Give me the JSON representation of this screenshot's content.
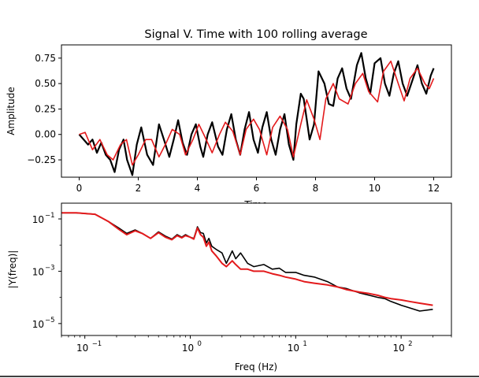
{
  "chart_data": [
    {
      "type": "line",
      "title": "Signal V. Time with 100 rolling average",
      "xlabel": "Time",
      "ylabel": "Amplitude",
      "xlim": [
        -0.6,
        12.6
      ],
      "ylim": [
        -0.42,
        0.88
      ],
      "xticks": [
        0,
        2,
        4,
        6,
        8,
        10,
        12
      ],
      "yticks": [
        -0.25,
        0.0,
        0.25,
        0.5,
        0.75
      ],
      "ytick_labels": [
        "−0.25",
        "0.00",
        "0.25",
        "0.50",
        "0.75"
      ],
      "colors": {
        "raw": "#000000",
        "rolling": "#e31a1c"
      },
      "series": [
        {
          "x": [
            0,
            0.3,
            0.45,
            0.6,
            0.75,
            0.9,
            1.05,
            1.2,
            1.35,
            1.5,
            1.62,
            1.8,
            1.95,
            2.1,
            2.3,
            2.5,
            2.7,
            2.9,
            3.05,
            3.2,
            3.35,
            3.5,
            3.65,
            3.8,
            3.95,
            4.1,
            4.2,
            4.35,
            4.5,
            4.7,
            4.85,
            5.0,
            5.15,
            5.3,
            5.45,
            5.6,
            5.75,
            5.9,
            6.05,
            6.2,
            6.35,
            6.5,
            6.65,
            6.8,
            6.95,
            7.1,
            7.25,
            7.35,
            7.5,
            7.6,
            7.7,
            7.8,
            7.95,
            8.1,
            8.3,
            8.45,
            8.6,
            8.75,
            8.9,
            9.05,
            9.2,
            9.4,
            9.55,
            9.7,
            9.85,
            10.0,
            10.2,
            10.35,
            10.5,
            10.65,
            10.8,
            10.95,
            11.1,
            11.3,
            11.45,
            11.6,
            11.75,
            11.9,
            12.0
          ],
          "y": [
            0.0,
            -0.1,
            -0.05,
            -0.18,
            -0.08,
            -0.2,
            -0.25,
            -0.37,
            -0.15,
            -0.05,
            -0.25,
            -0.4,
            -0.1,
            0.07,
            -0.2,
            -0.3,
            0.1,
            -0.08,
            -0.22,
            -0.05,
            0.14,
            -0.08,
            -0.2,
            0.0,
            0.1,
            -0.12,
            -0.22,
            0.0,
            0.12,
            -0.12,
            -0.2,
            0.05,
            0.2,
            -0.05,
            -0.2,
            0.05,
            0.22,
            -0.05,
            -0.18,
            0.07,
            0.22,
            -0.05,
            -0.2,
            0.05,
            0.2,
            -0.1,
            -0.25,
            0.1,
            0.4,
            0.35,
            0.15,
            -0.05,
            0.1,
            0.62,
            0.5,
            0.3,
            0.28,
            0.55,
            0.65,
            0.45,
            0.35,
            0.68,
            0.8,
            0.55,
            0.4,
            0.7,
            0.75,
            0.5,
            0.38,
            0.6,
            0.72,
            0.5,
            0.38,
            0.55,
            0.68,
            0.5,
            0.4,
            0.58,
            0.65
          ],
          "name": ""
        },
        {
          "x": [
            0,
            0.2,
            0.45,
            0.7,
            0.95,
            1.15,
            1.4,
            1.6,
            1.8,
            2.0,
            2.25,
            2.45,
            2.7,
            2.95,
            3.15,
            3.4,
            3.6,
            3.85,
            4.05,
            4.25,
            4.5,
            4.75,
            4.95,
            5.2,
            5.45,
            5.65,
            5.9,
            6.1,
            6.35,
            6.55,
            6.8,
            7.05,
            7.25,
            7.5,
            7.7,
            7.95,
            8.15,
            8.35,
            8.6,
            8.8,
            9.1,
            9.35,
            9.6,
            9.8,
            10.1,
            10.3,
            10.55,
            10.8,
            11.0,
            11.2,
            11.45,
            11.7,
            11.85,
            12.0
          ],
          "y": [
            0.0,
            0.02,
            -0.15,
            -0.05,
            -0.2,
            -0.25,
            -0.1,
            -0.05,
            -0.3,
            -0.2,
            -0.05,
            -0.05,
            -0.22,
            -0.08,
            0.05,
            0.0,
            -0.2,
            -0.05,
            0.1,
            -0.02,
            -0.18,
            0.0,
            0.12,
            0.03,
            -0.2,
            0.05,
            0.15,
            0.05,
            -0.2,
            0.07,
            0.18,
            0.05,
            -0.22,
            0.1,
            0.34,
            0.15,
            -0.05,
            0.35,
            0.5,
            0.35,
            0.3,
            0.5,
            0.6,
            0.42,
            0.32,
            0.62,
            0.72,
            0.5,
            0.33,
            0.55,
            0.65,
            0.5,
            0.45,
            0.55
          ],
          "name": ""
        }
      ]
    },
    {
      "type": "line",
      "title": "",
      "xlabel": "Freq (Hz)",
      "ylabel": "|Y(freq)|",
      "xscale": "log",
      "yscale": "log",
      "xlim": [
        0.06,
        300
      ],
      "ylim": [
        3.5e-06,
        0.4
      ],
      "xticks": [
        0.1,
        1,
        10,
        100
      ],
      "xtick_labels": [
        "10",
        "10",
        "10",
        "10"
      ],
      "xtick_exponents": [
        "−1",
        "0",
        "1",
        "2"
      ],
      "yticks": [
        1e-05,
        0.001,
        0.1
      ],
      "ytick_labels": [
        "10",
        "10",
        "10"
      ],
      "ytick_exponents": [
        "−5",
        "−3",
        "−1"
      ],
      "series": [
        {
          "x": [
            0.06,
            0.083,
            0.125,
            0.167,
            0.21,
            0.25,
            0.3,
            0.35,
            0.42,
            0.5,
            0.58,
            0.67,
            0.75,
            0.83,
            0.9,
            1.0,
            1.08,
            1.17,
            1.25,
            1.33,
            1.42,
            1.5,
            1.6,
            1.75,
            2.0,
            2.2,
            2.5,
            2.7,
            3.0,
            3.5,
            4.0,
            5,
            6,
            7,
            8,
            10,
            12,
            15,
            20,
            25,
            30,
            40,
            50,
            60,
            70,
            80,
            100,
            120,
            150,
            200
          ],
          "y": [
            0.17,
            0.17,
            0.15,
            0.08,
            0.045,
            0.028,
            0.038,
            0.028,
            0.018,
            0.032,
            0.022,
            0.017,
            0.025,
            0.02,
            0.025,
            0.02,
            0.018,
            0.05,
            0.03,
            0.028,
            0.012,
            0.018,
            0.009,
            0.007,
            0.005,
            0.002,
            0.006,
            0.003,
            0.005,
            0.002,
            0.0015,
            0.0018,
            0.0012,
            0.0013,
            0.0009,
            0.0009,
            0.0007,
            0.0006,
            0.0004,
            0.00025,
            0.00022,
            0.00015,
            0.00012,
            0.0001,
            9e-05,
            7e-05,
            5e-05,
            4e-05,
            3e-05,
            3.5e-05
          ],
          "name": ""
        },
        {
          "x": [
            0.06,
            0.083,
            0.125,
            0.167,
            0.21,
            0.25,
            0.3,
            0.35,
            0.42,
            0.5,
            0.58,
            0.67,
            0.75,
            0.83,
            0.9,
            1.0,
            1.08,
            1.17,
            1.25,
            1.33,
            1.42,
            1.5,
            1.6,
            1.75,
            2.0,
            2.2,
            2.5,
            2.7,
            3.0,
            3.5,
            4.0,
            5,
            6,
            7,
            8,
            10,
            12,
            15,
            20,
            25,
            30,
            40,
            50,
            60,
            70,
            80,
            100,
            120,
            150,
            200
          ],
          "y": [
            0.17,
            0.17,
            0.15,
            0.08,
            0.04,
            0.025,
            0.035,
            0.028,
            0.018,
            0.03,
            0.02,
            0.016,
            0.023,
            0.019,
            0.023,
            0.02,
            0.017,
            0.045,
            0.025,
            0.02,
            0.009,
            0.013,
            0.006,
            0.004,
            0.002,
            0.0015,
            0.0025,
            0.0018,
            0.0012,
            0.0012,
            0.001,
            0.001,
            0.0008,
            0.0007,
            0.0006,
            0.0005,
            0.0004,
            0.00035,
            0.0003,
            0.00025,
            0.0002,
            0.00016,
            0.00014,
            0.00012,
            0.0001,
            9e-05,
            8e-05,
            7e-05,
            6e-05,
            5e-05
          ],
          "name": ""
        }
      ]
    }
  ]
}
